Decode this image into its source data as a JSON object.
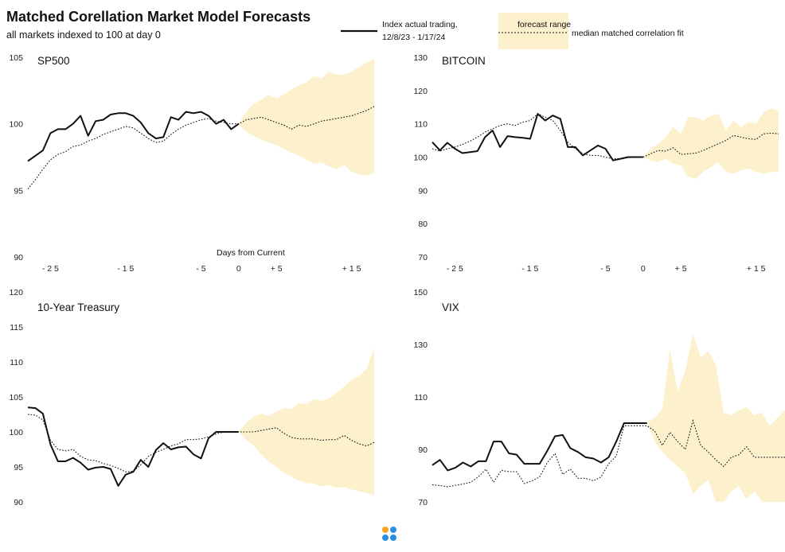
{
  "title": "Matched Corellation Market Model Forecasts",
  "subtitle": "all markets indexed to 100 at day 0",
  "legend": {
    "actual_label_line1": "Index actual trading,",
    "actual_label_line2": "12/8/23 - 1/17/24",
    "range_label": "forecast range",
    "median_label": "median matched correlation fit"
  },
  "colors": {
    "forecast_fill": "#fdf0cc",
    "actual_line": "#111111",
    "median_line": "#111111",
    "logo_orange": "#f5a623",
    "logo_blue": "#2a8fe0"
  },
  "chart_data": [
    {
      "type": "line",
      "title": "SP500",
      "ylim": [
        90,
        105
      ],
      "yticks": [
        90,
        95,
        100,
        105
      ],
      "xlim": [
        -28,
        18
      ],
      "xlabel": "Days from Current",
      "xticks": [
        {
          "value": -25,
          "label": "- 2 5"
        },
        {
          "value": -15,
          "label": "- 1 5"
        },
        {
          "value": -5,
          "label": "- 5"
        },
        {
          "value": 0,
          "label": "0"
        },
        {
          "value": 5,
          "label": "+ 5"
        },
        {
          "value": 15,
          "label": "+ 1 5"
        }
      ],
      "actual": {
        "x": [
          -28,
          -27,
          -26,
          -25,
          -24,
          -23,
          -22,
          -21,
          -20,
          -19,
          -18,
          -17,
          -16,
          -15,
          -14,
          -13,
          -12,
          -11,
          -10,
          -9,
          -8,
          -7,
          -6,
          -5,
          -4,
          -3,
          -2,
          -1,
          0
        ],
        "y": [
          97.2,
          97.6,
          98.0,
          99.3,
          99.6,
          99.6,
          100.0,
          100.6,
          99.1,
          100.2,
          100.3,
          100.7,
          100.8,
          100.8,
          100.6,
          100.1,
          99.3,
          98.9,
          99.0,
          100.5,
          100.3,
          100.9,
          100.8,
          100.9,
          100.6,
          100.0,
          100.3,
          99.6,
          100.0
        ]
      },
      "median": {
        "x": [
          -28,
          -27,
          -26,
          -25,
          -24,
          -23,
          -22,
          -21,
          -20,
          -19,
          -18,
          -17,
          -16,
          -15,
          -14,
          -13,
          -12,
          -11,
          -10,
          -9,
          -8,
          -7,
          -6,
          -5,
          -4,
          -3,
          -2,
          -1,
          0,
          1,
          2,
          3,
          4,
          5,
          6,
          7,
          8,
          9,
          10,
          11,
          12,
          13,
          14,
          15,
          16,
          17,
          18
        ],
        "y": [
          95.1,
          95.8,
          96.6,
          97.3,
          97.7,
          97.9,
          98.3,
          98.4,
          98.7,
          98.9,
          99.2,
          99.4,
          99.6,
          99.8,
          99.7,
          99.3,
          98.9,
          98.6,
          98.7,
          99.2,
          99.6,
          99.9,
          100.1,
          100.3,
          100.4,
          100.2,
          100.1,
          100.0,
          100.0,
          100.3,
          100.4,
          100.5,
          100.3,
          100.1,
          99.9,
          99.6,
          99.9,
          99.8,
          100.0,
          100.2,
          100.3,
          100.4,
          100.5,
          100.6,
          100.8,
          101.0,
          101.3
        ]
      },
      "forecast_upper": {
        "x": [
          0,
          1,
          2,
          3,
          4,
          5,
          6,
          7,
          8,
          9,
          10,
          11,
          12,
          13,
          14,
          15,
          16,
          17,
          18
        ],
        "y": [
          100.0,
          100.9,
          101.5,
          101.8,
          102.2,
          101.9,
          102.2,
          102.6,
          102.9,
          103.1,
          103.6,
          103.4,
          103.9,
          103.7,
          103.7,
          103.9,
          104.3,
          104.6,
          104.9
        ]
      },
      "forecast_lower": {
        "x": [
          0,
          1,
          2,
          3,
          4,
          5,
          6,
          7,
          8,
          9,
          10,
          11,
          12,
          13,
          14,
          15,
          16,
          17,
          18
        ],
        "y": [
          100.0,
          99.4,
          99.1,
          98.8,
          98.6,
          98.4,
          98.1,
          97.8,
          97.6,
          97.3,
          97.0,
          97.1,
          96.8,
          96.6,
          96.9,
          96.4,
          96.2,
          96.1,
          96.3
        ]
      }
    },
    {
      "type": "line",
      "title": "BITCOIN",
      "ylim": [
        70,
        130
      ],
      "yticks": [
        70,
        80,
        90,
        100,
        110,
        120,
        130
      ],
      "xlim": [
        -28,
        18
      ],
      "xticks": [
        {
          "value": -25,
          "label": "- 2 5"
        },
        {
          "value": -15,
          "label": "- 1 5"
        },
        {
          "value": -5,
          "label": "- 5"
        },
        {
          "value": 0,
          "label": "0"
        },
        {
          "value": 5,
          "label": "+ 5"
        },
        {
          "value": 15,
          "label": "+ 1 5"
        }
      ],
      "actual": {
        "x": [
          -28,
          -27,
          -26,
          -25,
          -24,
          -23,
          -22,
          -21,
          -20,
          -19,
          -18,
          -17,
          -16,
          -15,
          -14,
          -13,
          -12,
          -11,
          -10,
          -9,
          -8,
          -7,
          -6,
          -5,
          -4,
          -3,
          -2,
          -1,
          0
        ],
        "y": [
          104.5,
          102.0,
          104.3,
          102.5,
          101.2,
          101.5,
          101.8,
          106.0,
          108.0,
          103.0,
          106.3,
          106.0,
          105.8,
          105.5,
          113.0,
          111.0,
          112.5,
          111.5,
          103.0,
          103.0,
          100.5,
          102.0,
          103.5,
          102.5,
          99.0,
          99.5,
          100.0,
          100.0,
          100.0
        ]
      },
      "median": {
        "x": [
          -28,
          -27,
          -26,
          -25,
          -24,
          -23,
          -22,
          -21,
          -20,
          -19,
          -18,
          -17,
          -16,
          -15,
          -14,
          -13,
          -12,
          -11,
          -10,
          -9,
          -8,
          -7,
          -6,
          -5,
          -4,
          -3,
          -2,
          -1,
          0,
          1,
          2,
          3,
          4,
          5,
          6,
          7,
          8,
          9,
          10,
          11,
          12,
          13,
          14,
          15,
          16,
          17,
          18
        ],
        "y": [
          102.5,
          101.8,
          102.5,
          103.0,
          103.8,
          104.8,
          106.0,
          107.5,
          108.5,
          109.5,
          110.0,
          109.5,
          110.5,
          111.0,
          113.0,
          112.0,
          111.0,
          108.0,
          104.5,
          102.5,
          101.0,
          100.5,
          100.5,
          100.0,
          99.5,
          99.5,
          99.8,
          100.0,
          100.0,
          101.0,
          102.0,
          101.8,
          102.8,
          100.8,
          101.0,
          101.2,
          102.0,
          103.0,
          104.0,
          105.0,
          106.5,
          106.0,
          105.5,
          105.3,
          107.0,
          107.2,
          107.0
        ]
      },
      "forecast_upper": {
        "x": [
          0,
          1,
          2,
          3,
          4,
          5,
          6,
          7,
          8,
          9,
          10,
          11,
          12,
          13,
          14,
          15,
          16,
          17,
          18
        ],
        "y": [
          100.0,
          102.5,
          104.0,
          106.0,
          109.0,
          107.0,
          112.0,
          112.0,
          111.0,
          112.5,
          113.0,
          108.0,
          111.0,
          109.0,
          110.5,
          110.0,
          113.5,
          114.5,
          114.0
        ]
      },
      "forecast_lower": {
        "x": [
          0,
          1,
          2,
          3,
          4,
          5,
          6,
          7,
          8,
          9,
          10,
          11,
          12,
          13,
          14,
          15,
          16,
          17,
          18
        ],
        "y": [
          100.0,
          99.0,
          98.5,
          99.5,
          98.0,
          97.5,
          94.0,
          93.5,
          95.5,
          97.0,
          98.5,
          95.5,
          95.0,
          96.0,
          96.5,
          95.5,
          95.0,
          95.5,
          95.5
        ]
      }
    },
    {
      "type": "line",
      "title": "10-Year Treasury",
      "ylim": [
        90,
        120
      ],
      "yticks": [
        90,
        95,
        100,
        105,
        110,
        115,
        120
      ],
      "xlim": [
        -28,
        18
      ],
      "xticks": [],
      "actual": {
        "x": [
          -28,
          -27,
          -26,
          -25,
          -24,
          -23,
          -22,
          -21,
          -20,
          -19,
          -18,
          -17,
          -16,
          -15,
          -14,
          -13,
          -12,
          -11,
          -10,
          -9,
          -8,
          -7,
          -6,
          -5,
          -4,
          -3,
          -2,
          -1,
          0
        ],
        "y": [
          103.5,
          103.4,
          102.6,
          98.2,
          95.8,
          95.8,
          96.3,
          95.6,
          94.6,
          94.9,
          95.0,
          94.7,
          92.3,
          93.9,
          94.3,
          96.0,
          95.0,
          97.4,
          98.4,
          97.5,
          97.8,
          97.9,
          96.8,
          96.2,
          99.1,
          100.0,
          100.0,
          100.0,
          100.0
        ]
      },
      "median": {
        "x": [
          -28,
          -27,
          -26,
          -25,
          -24,
          -23,
          -22,
          -21,
          -20,
          -19,
          -18,
          -17,
          -16,
          -15,
          -14,
          -13,
          -12,
          -11,
          -10,
          -9,
          -8,
          -7,
          -6,
          -5,
          -4,
          -3,
          -2,
          -1,
          0,
          1,
          2,
          3,
          4,
          5,
          6,
          7,
          8,
          9,
          10,
          11,
          12,
          13,
          14,
          15,
          16,
          17,
          18
        ],
        "y": [
          102.5,
          102.4,
          101.7,
          98.8,
          97.5,
          97.3,
          97.5,
          96.5,
          96.0,
          95.9,
          95.5,
          95.2,
          94.8,
          94.3,
          94.4,
          95.3,
          96.5,
          97.1,
          97.5,
          98.0,
          98.3,
          98.9,
          98.9,
          99.0,
          99.3,
          99.7,
          100.0,
          100.0,
          100.0,
          100.0,
          100.0,
          100.2,
          100.4,
          100.6,
          99.8,
          99.2,
          99.0,
          99.0,
          99.0,
          98.8,
          98.9,
          98.9,
          99.5,
          98.8,
          98.3,
          98.0,
          98.5
        ]
      },
      "forecast_upper": {
        "x": [
          0,
          1,
          2,
          3,
          4,
          5,
          6,
          7,
          8,
          9,
          10,
          11,
          12,
          13,
          14,
          15,
          16,
          17,
          18
        ],
        "y": [
          100.0,
          101.3,
          102.2,
          102.6,
          102.3,
          102.9,
          103.4,
          103.3,
          104.1,
          104.0,
          104.7,
          104.4,
          104.8,
          105.6,
          106.5,
          107.4,
          108.0,
          109.0,
          112.0
        ]
      },
      "forecast_lower": {
        "x": [
          0,
          1,
          2,
          3,
          4,
          5,
          6,
          7,
          8,
          9,
          10,
          11,
          12,
          13,
          14,
          15,
          16,
          17,
          18
        ],
        "y": [
          100.0,
          98.9,
          98.0,
          96.8,
          95.7,
          95.0,
          94.2,
          93.6,
          93.0,
          92.7,
          92.6,
          92.2,
          92.4,
          92.0,
          92.1,
          91.8,
          91.5,
          91.3,
          91.0
        ]
      }
    },
    {
      "type": "line",
      "title": "VIX",
      "ylim": [
        70,
        150
      ],
      "yticks": [
        70,
        90,
        110,
        130,
        150
      ],
      "xlim": [
        -28,
        18
      ],
      "xticks": [],
      "actual": {
        "x": [
          -28,
          -27,
          -26,
          -25,
          -24,
          -23,
          -22,
          -21,
          -20,
          -19,
          -18,
          -17,
          -16,
          -15,
          -14,
          -13,
          -12,
          -11,
          -10,
          -9,
          -8,
          -7,
          -6,
          -5,
          -4,
          -3,
          -2,
          -1,
          0
        ],
        "y": [
          84.0,
          86.0,
          82.0,
          83.0,
          85.0,
          83.5,
          85.5,
          85.5,
          93.0,
          93.0,
          88.5,
          88.0,
          84.5,
          84.5,
          84.5,
          89.5,
          95.0,
          95.5,
          90.5,
          89.0,
          87.0,
          86.5,
          85.0,
          87.0,
          93.0,
          100.0,
          100.0,
          100.0,
          100.0
        ]
      },
      "median": {
        "x": [
          -28,
          -27,
          -26,
          -25,
          -24,
          -23,
          -22,
          -21,
          -20,
          -19,
          -18,
          -17,
          -16,
          -15,
          -14,
          -13,
          -12,
          -11,
          -10,
          -9,
          -8,
          -7,
          -6,
          -5,
          -4,
          -3,
          -2,
          -1,
          0,
          1,
          2,
          3,
          4,
          5,
          6,
          7,
          8,
          9,
          10,
          11,
          12,
          13,
          14,
          15,
          16,
          17,
          18
        ],
        "y": [
          76.5,
          76.2,
          75.8,
          76.3,
          76.8,
          77.5,
          79.5,
          82.5,
          77.5,
          82.0,
          81.5,
          81.5,
          77.0,
          78.0,
          79.5,
          85.0,
          88.5,
          80.5,
          82.5,
          79.0,
          79.0,
          78.0,
          79.5,
          84.5,
          87.5,
          99.0,
          99.0,
          99.0,
          99.0,
          97.0,
          91.5,
          96.5,
          93.0,
          90.0,
          101.0,
          91.5,
          89.0,
          86.0,
          83.5,
          87.0,
          88.0,
          91.0,
          87.0,
          87.0,
          87.0,
          87.0,
          87.0
        ]
      },
      "forecast_upper": {
        "x": [
          0,
          1,
          2,
          3,
          4,
          5,
          6,
          7,
          8,
          9,
          10,
          11,
          12,
          13,
          14,
          15,
          16,
          17,
          18
        ],
        "y": [
          100.0,
          102.0,
          105.5,
          128.0,
          112.0,
          120.0,
          134.0,
          125.0,
          127.5,
          122.0,
          104.0,
          103.0,
          105.0,
          106.0,
          103.0,
          104.0,
          99.0,
          102.0,
          105.0
        ]
      },
      "forecast_lower": {
        "x": [
          0,
          1,
          2,
          3,
          4,
          5,
          6,
          7,
          8,
          9,
          10,
          11,
          12,
          13,
          14,
          15,
          16,
          17,
          18
        ],
        "y": [
          100.0,
          93.0,
          89.0,
          86.0,
          83.5,
          81.0,
          73.0,
          76.0,
          78.5,
          70.0,
          70.0,
          74.0,
          76.0,
          71.0,
          74.0,
          70.0,
          70.0,
          70.0,
          70.0
        ]
      }
    }
  ]
}
